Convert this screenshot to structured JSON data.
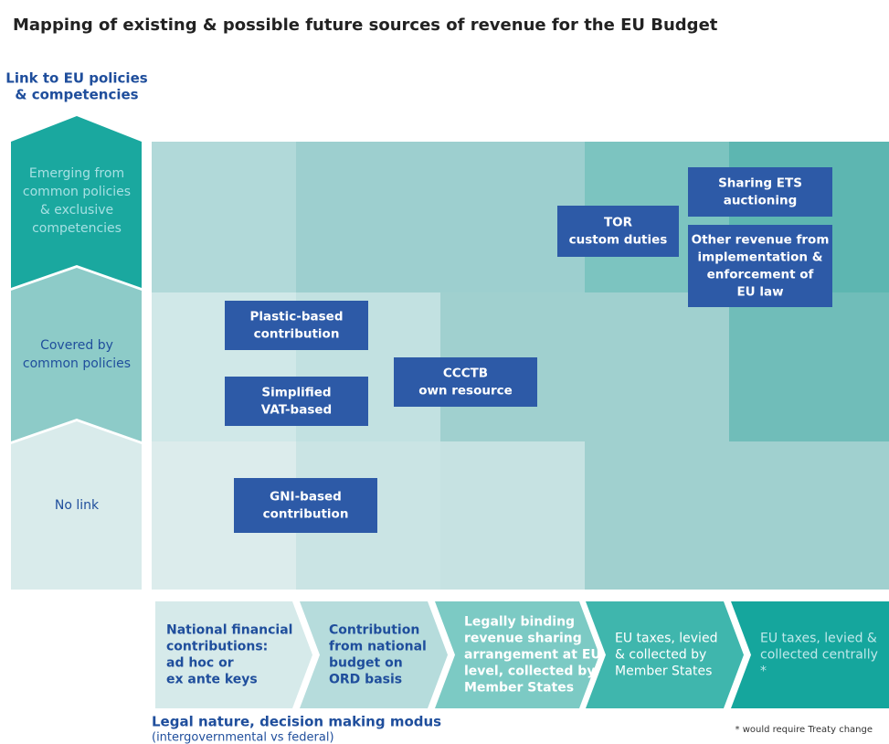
{
  "title": "Mapping of existing & possible future sources of revenue for the EU Budget",
  "y_axis": {
    "label": [
      "Link to EU policies",
      "& competencies"
    ]
  },
  "rows": [
    {
      "label": [
        "Emerging from",
        "common policies",
        "& exclusive",
        "competencies"
      ]
    },
    {
      "label": [
        "Covered by",
        "common policies"
      ]
    },
    {
      "label": [
        "No link"
      ]
    }
  ],
  "columns": [
    {
      "label": [
        "National financial",
        "contributions:",
        "ad hoc or",
        "ex ante keys"
      ]
    },
    {
      "label": [
        "Contribution",
        "from national",
        "budget on",
        "ORD basis"
      ]
    },
    {
      "label": [
        "Legally binding",
        "revenue sharing",
        "arrangement at EU",
        "level, collected by",
        "Member States"
      ]
    },
    {
      "label": [
        "EU taxes, levied",
        "& collected by",
        "Member States"
      ]
    },
    {
      "label": [
        "EU taxes, levied &",
        "collected centrally",
        "*"
      ]
    }
  ],
  "boxes": [
    {
      "label": [
        "TOR",
        "custom duties"
      ]
    },
    {
      "label": [
        "Sharing ETS",
        "auctioning"
      ]
    },
    {
      "label": [
        "Other revenue from",
        "implementation &",
        "enforcement of",
        "EU law"
      ]
    },
    {
      "label": [
        "Plastic-based",
        "contribution"
      ]
    },
    {
      "label": [
        "Simplified",
        "VAT-based"
      ]
    },
    {
      "label": [
        "CCCTB",
        "own resource"
      ]
    },
    {
      "label": [
        "GNI-based",
        "contribution"
      ]
    }
  ],
  "x_axis": {
    "label": "Legal nature, decision making modus",
    "sublabel": "(intergovernmental vs federal)"
  },
  "footnote": "* would require Treaty change"
}
